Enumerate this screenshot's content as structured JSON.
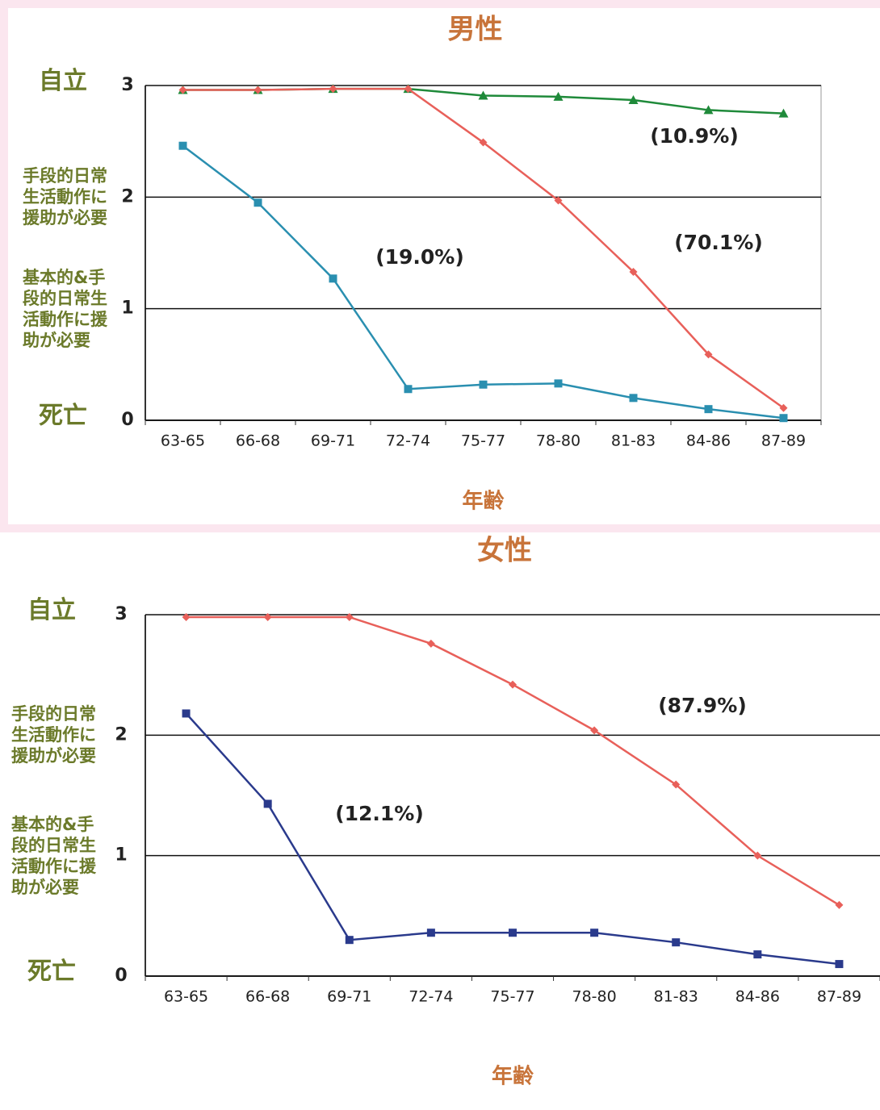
{
  "chart_data": [
    {
      "type": "line",
      "title": "男性",
      "x_label": "年齢",
      "categories": [
        "63-65",
        "66-68",
        "69-71",
        "72-74",
        "75-77",
        "78-80",
        "81-83",
        "84-86",
        "87-89"
      ],
      "ylim": [
        0,
        3
      ],
      "yticks": [
        0,
        1,
        2,
        3
      ],
      "level_labels": [
        {
          "value": 3,
          "label": "自立"
        },
        {
          "value": 2,
          "label": "手段的日常生活動作に援助が必要"
        },
        {
          "value": 1,
          "label": "基本的&手段的日常生活動作に援助が必要"
        },
        {
          "value": 0,
          "label": "死亡"
        }
      ],
      "grid": true,
      "series": [
        {
          "name": "(10.9%)",
          "color": "#1f8a3a",
          "marker": "triangle",
          "values": [
            2.96,
            2.96,
            2.97,
            2.97,
            2.91,
            2.9,
            2.87,
            2.78,
            2.75
          ]
        },
        {
          "name": "(70.1%)",
          "color": "#e8605a",
          "marker": "diamond",
          "values": [
            2.96,
            2.96,
            2.97,
            2.97,
            2.49,
            1.97,
            1.33,
            0.59,
            0.11
          ]
        },
        {
          "name": "(19.0%)",
          "color": "#2a8fb0",
          "marker": "square",
          "values": [
            2.46,
            1.95,
            1.27,
            0.28,
            0.32,
            0.33,
            0.2,
            0.1,
            0.02
          ]
        }
      ]
    },
    {
      "type": "line",
      "title": "女性",
      "x_label": "年齢",
      "categories": [
        "63-65",
        "66-68",
        "69-71",
        "72-74",
        "75-77",
        "78-80",
        "81-83",
        "84-86",
        "87-89"
      ],
      "ylim": [
        0,
        3
      ],
      "yticks": [
        0,
        1,
        2,
        3
      ],
      "level_labels": [
        {
          "value": 3,
          "label": "自立"
        },
        {
          "value": 2,
          "label": "手段的日常生活動作に援助が必要"
        },
        {
          "value": 1,
          "label": "基本的&手段的日常生活動作に援助が必要"
        },
        {
          "value": 0,
          "label": "死亡"
        }
      ],
      "grid": true,
      "series": [
        {
          "name": "(87.9%)",
          "color": "#e8605a",
          "marker": "diamond",
          "values": [
            2.98,
            2.98,
            2.98,
            2.76,
            2.42,
            2.04,
            1.59,
            1.0,
            0.59
          ]
        },
        {
          "name": "(12.1%)",
          "color": "#2a3a8c",
          "marker": "square",
          "values": [
            2.18,
            1.43,
            0.3,
            0.36,
            0.36,
            0.36,
            0.28,
            0.18,
            0.1
          ]
        }
      ]
    }
  ]
}
